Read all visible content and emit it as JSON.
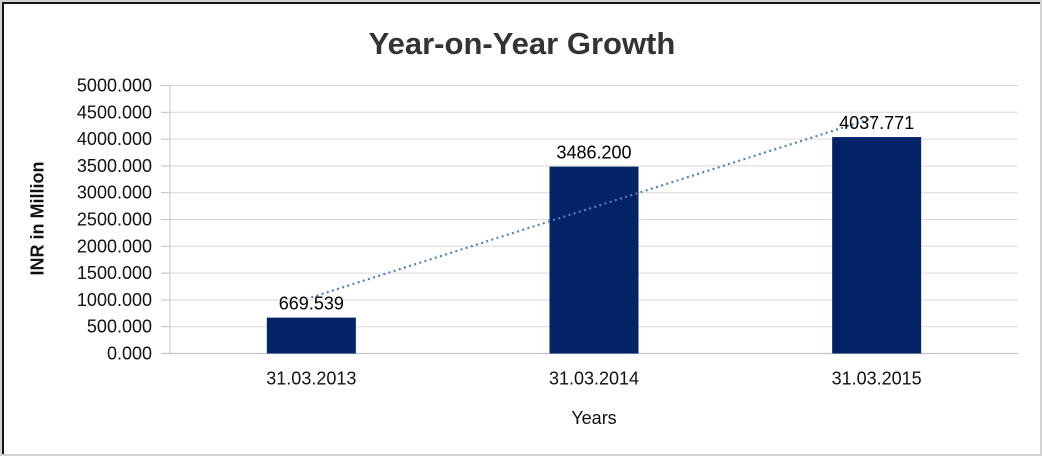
{
  "chart_data": {
    "type": "bar",
    "title": "Year-on-Year Growth",
    "xlabel": "Years",
    "ylabel": "INR in Million",
    "categories": [
      "31.03.2013",
      "31.03.2014",
      "31.03.2015"
    ],
    "series": [
      {
        "name": "INR in Million",
        "values": [
          669.539,
          3486.2,
          4037.771
        ],
        "data_labels": [
          "669.539",
          "3486.200",
          "4037.771"
        ]
      }
    ],
    "ylim": [
      0,
      5000
    ],
    "ytick_step": 500,
    "ytick_decimals": 3,
    "ytick_labels": [
      "0.000",
      "500.000",
      "1000.000",
      "1500.000",
      "2000.000",
      "2500.000",
      "3000.000",
      "3500.000",
      "4000.000",
      "4500.000",
      "5000.000"
    ],
    "grid": true,
    "legend": "none",
    "trendline": {
      "type": "linear",
      "style": "dotted",
      "color": "#4e81bd"
    },
    "colors": {
      "bar": "#032366",
      "gridline": "#d9d9d9",
      "axis_line": "#c4c4c4",
      "tick": "#bfbfbf",
      "text": "#111111",
      "title": "#333333"
    }
  }
}
